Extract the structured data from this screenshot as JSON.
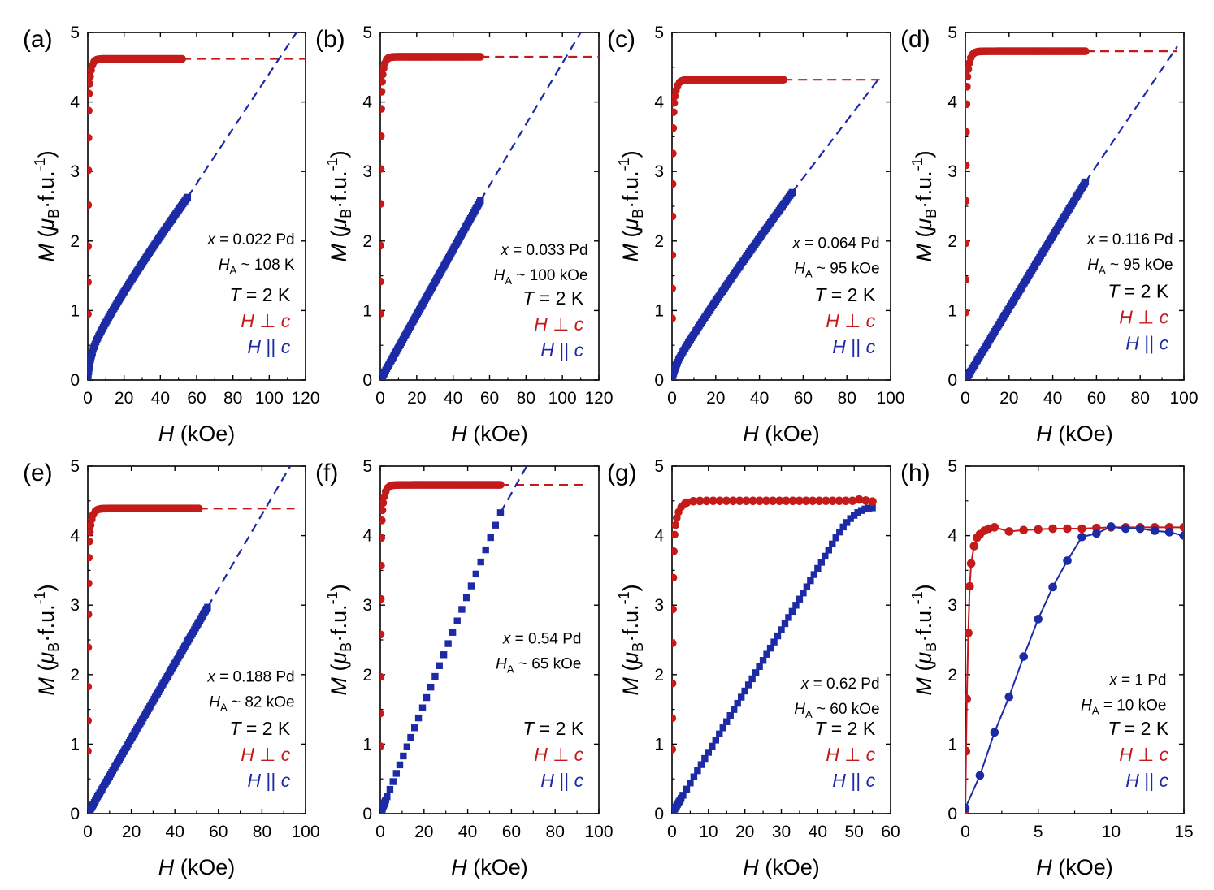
{
  "colors": {
    "perp": "#c41a1a",
    "par": "#1c2aa6",
    "axis": "#000000"
  },
  "ylabel_main": "M",
  "ylabel_unit": "(μB·f.u.⁻¹)",
  "xlabel": "H (kOe)",
  "chart_data": [
    {
      "type": "scatter",
      "panel_label": "(a)",
      "xlim": [
        0,
        120
      ],
      "ylim": [
        0,
        5
      ],
      "xticks": [
        "0",
        "20",
        "40",
        "60",
        "80",
        "100",
        "120"
      ],
      "yticks": [
        "0",
        "1",
        "2",
        "3",
        "4",
        "5"
      ],
      "xlabel": "H (kOe)",
      "ylabel": "M (μB·f.u.⁻¹)",
      "annotations": [
        "x = 0.022 Pd",
        "HA ~ 108 K"
      ],
      "temperature": "T = 2 K",
      "legend": [
        "H ⊥ c",
        "H || c"
      ],
      "perp_sat": 4.62,
      "perp_end": 52,
      "par_end": 55,
      "par_end_value": 2.63,
      "par_shape": "concave",
      "par_extrap_to": [
        115,
        5.0
      ],
      "perp_extrap_to": 120
    },
    {
      "type": "scatter",
      "panel_label": "(b)",
      "xlim": [
        0,
        120
      ],
      "ylim": [
        0,
        5
      ],
      "xticks": [
        "0",
        "20",
        "40",
        "60",
        "80",
        "100",
        "120"
      ],
      "yticks": [
        "0",
        "1",
        "2",
        "3",
        "4",
        "5"
      ],
      "xlabel": "H (kOe)",
      "ylabel": "M (μB·f.u.⁻¹)",
      "annotations": [
        "x = 0.033 Pd",
        "HA ~ 100 kOe"
      ],
      "temperature": "T = 2 K",
      "legend": [
        "H ⊥ c",
        "H || c"
      ],
      "perp_sat": 4.65,
      "perp_end": 55,
      "par_end": 55,
      "par_end_value": 2.58,
      "par_shape": "linear",
      "par_extrap_to": [
        110,
        5.0
      ],
      "perp_extrap_to": 120
    },
    {
      "type": "scatter",
      "panel_label": "(c)",
      "xlim": [
        0,
        100
      ],
      "ylim": [
        0,
        5
      ],
      "xticks": [
        "0",
        "20",
        "40",
        "60",
        "80",
        "100"
      ],
      "yticks": [
        "0",
        "1",
        "2",
        "3",
        "4",
        "5"
      ],
      "xlabel": "H (kOe)",
      "ylabel": "M (μB·f.u.⁻¹)",
      "annotations": [
        "x = 0.064 Pd",
        "HA ~ 95 kOe"
      ],
      "temperature": "T = 2 K",
      "legend": [
        "H ⊥ c",
        "H || c"
      ],
      "perp_sat": 4.32,
      "perp_end": 51,
      "par_end": 55,
      "par_end_value": 2.7,
      "par_shape": "concave-slight",
      "par_extrap_to": [
        95,
        4.35
      ],
      "perp_extrap_to": 95
    },
    {
      "type": "scatter",
      "panel_label": "(d)",
      "xlim": [
        0,
        100
      ],
      "ylim": [
        0,
        5
      ],
      "xticks": [
        "0",
        "20",
        "40",
        "60",
        "80",
        "100"
      ],
      "yticks": [
        "0",
        "1",
        "2",
        "3",
        "4",
        "5"
      ],
      "xlabel": "H (kOe)",
      "ylabel": "M (μB·f.u.⁻¹)",
      "annotations": [
        "x = 0.116 Pd",
        "HA ~ 95 kOe"
      ],
      "temperature": "T = 2 K",
      "legend": [
        "H ⊥ c",
        "H || c"
      ],
      "perp_sat": 4.73,
      "perp_end": 55,
      "par_end": 55,
      "par_end_value": 2.85,
      "par_shape": "linear",
      "par_extrap_to": [
        97,
        4.8
      ],
      "perp_extrap_to": 97
    },
    {
      "type": "scatter",
      "panel_label": "(e)",
      "xlim": [
        0,
        100
      ],
      "ylim": [
        0,
        5
      ],
      "xticks": [
        "0",
        "20",
        "40",
        "60",
        "80",
        "100"
      ],
      "yticks": [
        "0",
        "1",
        "2",
        "3",
        "4",
        "5"
      ],
      "xlabel": "H (kOe)",
      "ylabel": "M (μB·f.u.⁻¹)",
      "annotations": [
        "x = 0.188 Pd",
        "HA ~ 82 kOe"
      ],
      "temperature": "T = 2 K",
      "legend": [
        "H ⊥ c",
        "H || c"
      ],
      "perp_sat": 4.39,
      "perp_end": 51,
      "par_end": 55,
      "par_end_value": 2.97,
      "par_shape": "linear",
      "par_extrap_to": [
        93,
        5.0
      ],
      "perp_extrap_to": 95
    },
    {
      "type": "scatter",
      "panel_label": "(f)",
      "xlim": [
        0,
        100
      ],
      "ylim": [
        0,
        5
      ],
      "xticks": [
        "0",
        "20",
        "40",
        "60",
        "80",
        "100"
      ],
      "yticks": [
        "0",
        "1",
        "2",
        "3",
        "4",
        "5"
      ],
      "xlabel": "H (kOe)",
      "ylabel": "M (μB·f.u.⁻¹)",
      "annotations": [
        "x = 0.54 Pd",
        "HA ~ 65 kOe"
      ],
      "temperature": "T = 2 K",
      "legend": [
        "H ⊥ c",
        "H || c"
      ],
      "perp_sat": 4.73,
      "perp_end": 55,
      "par_end": 55,
      "par_end_value": 4.33,
      "par_shape": "linear",
      "par_extrap_to": [
        67,
        5.0
      ],
      "perp_extrap_to": 95
    },
    {
      "type": "scatter",
      "panel_label": "(g)",
      "xlim": [
        0,
        60
      ],
      "ylim": [
        0,
        5
      ],
      "xticks": [
        "0",
        "10",
        "20",
        "30",
        "40",
        "50",
        "60"
      ],
      "yticks": [
        "0",
        "1",
        "2",
        "3",
        "4",
        "5"
      ],
      "xlabel": "H (kOe)",
      "ylabel": "M (μB·f.u.⁻¹)",
      "annotations": [
        "x = 0.62 Pd",
        "HA ~ 60 kOe"
      ],
      "temperature": "T = 2 K",
      "legend": [
        "H ⊥ c",
        "H || c"
      ],
      "perp_sat": 4.5,
      "perp_end": 55,
      "par_end": 55,
      "par_end_value": 4.4,
      "par_shape": "rounded-top"
    },
    {
      "type": "scatter",
      "panel_label": "(h)",
      "xlim": [
        0,
        15
      ],
      "ylim": [
        0,
        5
      ],
      "xticks": [
        "0",
        "5",
        "10",
        "15"
      ],
      "yticks": [
        "0",
        "1",
        "2",
        "3",
        "4",
        "5"
      ],
      "xlabel": "H (kOe)",
      "ylabel": "M (μB·f.u.⁻¹)",
      "annotations": [
        "x = 1 Pd",
        "HA = 10 kOe"
      ],
      "temperature": "T = 2 K",
      "legend": [
        "H ⊥ c",
        "H || c"
      ],
      "perp_points": [
        [
          0,
          0
        ],
        [
          0.05,
          0.9
        ],
        [
          0.1,
          1.65
        ],
        [
          0.2,
          2.6
        ],
        [
          0.3,
          3.27
        ],
        [
          0.4,
          3.6
        ],
        [
          0.6,
          3.85
        ],
        [
          0.8,
          3.97
        ],
        [
          1,
          4.02
        ],
        [
          1.3,
          4.07
        ],
        [
          1.6,
          4.1
        ],
        [
          2,
          4.12
        ],
        [
          3,
          4.06
        ],
        [
          4,
          4.08
        ],
        [
          5,
          4.09
        ],
        [
          6,
          4.1
        ],
        [
          7,
          4.1
        ],
        [
          8,
          4.1
        ],
        [
          9,
          4.11
        ],
        [
          10,
          4.12
        ],
        [
          11,
          4.12
        ],
        [
          12,
          4.12
        ],
        [
          13,
          4.12
        ],
        [
          14,
          4.12
        ],
        [
          15,
          4.12
        ]
      ],
      "par_points": [
        [
          0,
          0.08
        ],
        [
          1,
          0.55
        ],
        [
          2,
          1.17
        ],
        [
          3,
          1.68
        ],
        [
          4,
          2.26
        ],
        [
          5,
          2.8
        ],
        [
          6,
          3.26
        ],
        [
          7,
          3.64
        ],
        [
          8,
          3.98
        ],
        [
          9,
          4.03
        ],
        [
          10,
          4.13
        ],
        [
          11,
          4.1
        ],
        [
          12,
          4.1
        ],
        [
          13,
          4.07
        ],
        [
          14,
          4.05
        ],
        [
          15,
          4.0
        ]
      ]
    }
  ]
}
